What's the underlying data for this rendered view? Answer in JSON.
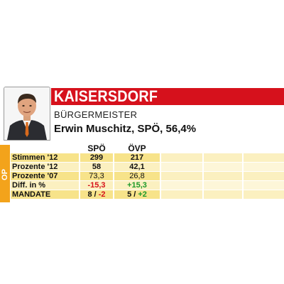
{
  "municipality": "KAISERSDORF",
  "office": "BÜRGERMEISTER",
  "mayor_line": "Erwin Muschitz, SPÖ, 56,4%",
  "side_label": "OP",
  "columns": [
    "SPÖ",
    "ÖVP"
  ],
  "rows": [
    {
      "label": "Stimmen '12",
      "values": [
        "299",
        "217"
      ],
      "bold": true
    },
    {
      "label": "Prozente '12",
      "values": [
        "58",
        "42,1"
      ],
      "bold": true
    },
    {
      "label": "Prozente '07",
      "values": [
        "73,3",
        "26,8"
      ],
      "bold": false
    },
    {
      "label": "Diff. in %",
      "values": [
        "-15,3",
        "+15,3"
      ],
      "bold": true
    }
  ],
  "mandate": {
    "label": "MANDATE",
    "spo": {
      "count": "8",
      "sep": " / ",
      "diff": "-2"
    },
    "ovp": {
      "count": "5",
      "sep": " / ",
      "diff": "+2"
    }
  },
  "colors": {
    "accent_red": "#d6111c",
    "tab_orange": "#f3a31b",
    "row_yellow": "#f7e38a",
    "row_light": "#fbf0c0"
  }
}
